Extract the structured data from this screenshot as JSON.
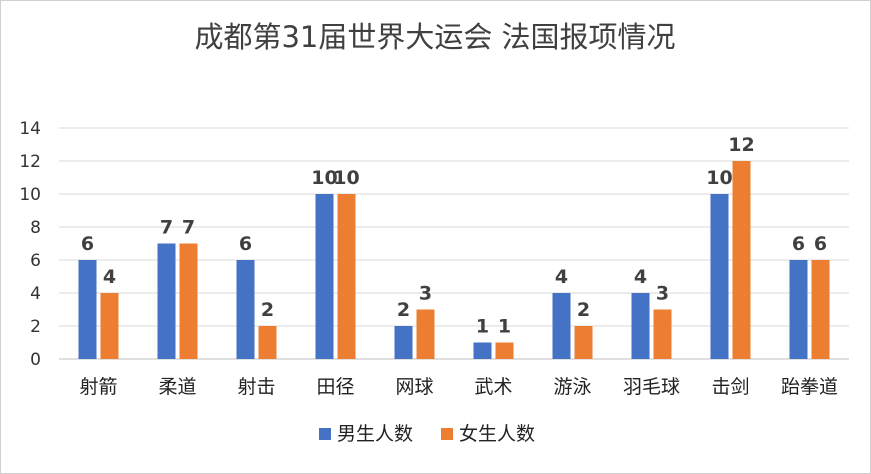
{
  "chart_data": {
    "type": "bar",
    "title": "成都第31届世界大运会 法国报项情况",
    "xlabel": "",
    "ylabel": "",
    "ylim": [
      0,
      14
    ],
    "yticks": [
      0,
      2,
      4,
      6,
      8,
      10,
      12,
      14
    ],
    "grid": true,
    "legend_position": "bottom",
    "categories": [
      "射箭",
      "柔道",
      "射击",
      "田径",
      "网球",
      "武术",
      "游泳",
      "羽毛球",
      "击剑",
      "跆拳道"
    ],
    "series": [
      {
        "name": "男生人数",
        "color": "#4472C4",
        "values": [
          6,
          7,
          6,
          10,
          2,
          1,
          4,
          4,
          10,
          6
        ]
      },
      {
        "name": "女生人数",
        "color": "#ED7D31",
        "values": [
          4,
          7,
          2,
          10,
          3,
          1,
          2,
          3,
          12,
          6
        ]
      }
    ]
  }
}
